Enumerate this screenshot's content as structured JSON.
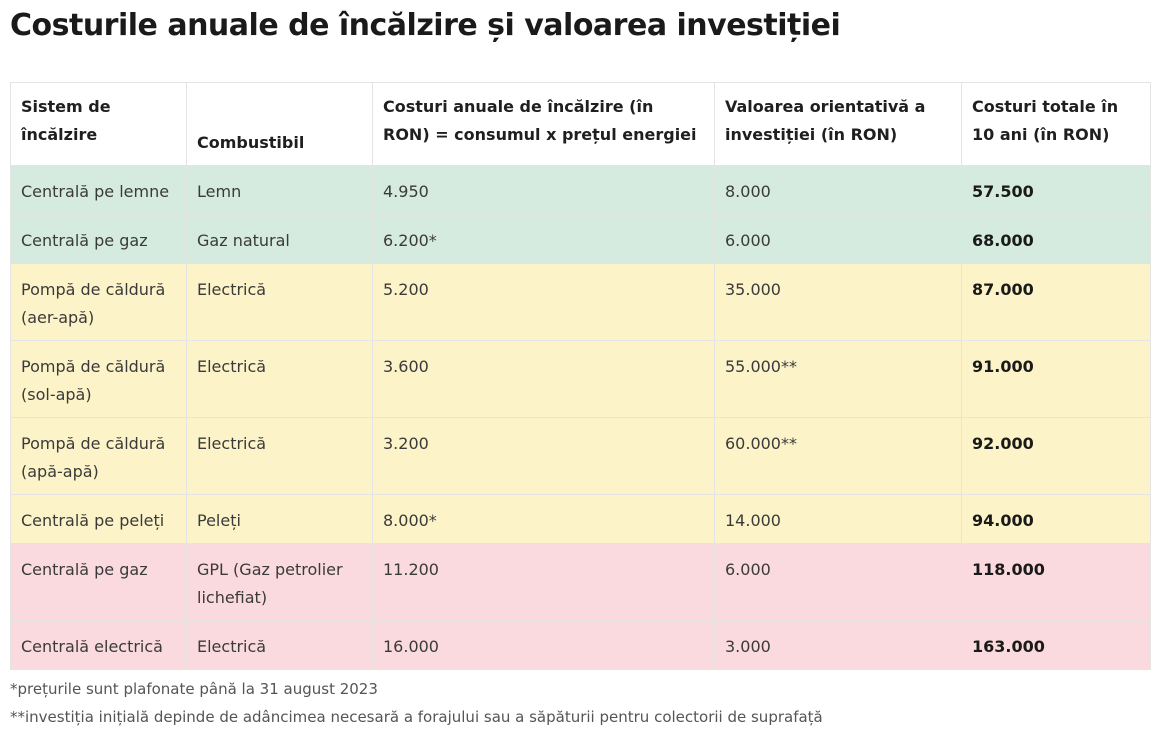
{
  "title": "Costurile anuale de încălzire și valoarea investiției",
  "columns": [
    "Sistem de încălzire",
    "Combustibil",
    "Costuri anuale de încălzire (în RON) = consumul x prețul energiei",
    "Valoarea orientativă a investiției (în RON)",
    "Costuri totale în 10 ani (în RON)"
  ],
  "rows": [
    {
      "system": "Centrală pe lemne",
      "fuel": "Lemn",
      "annual": "4.950",
      "investment": "8.000",
      "total": "57.500",
      "color": "#d6ebe0"
    },
    {
      "system": "Centrală pe gaz",
      "fuel": "Gaz natural",
      "annual": "6.200*",
      "investment": "6.000",
      "total": "68.000",
      "color": "#d6ebe0"
    },
    {
      "system": "Pompă de căldură (aer-apă)",
      "fuel": "Electrică",
      "annual": "5.200",
      "investment": "35.000",
      "total": "87.000",
      "color": "#fcf4c8"
    },
    {
      "system": "Pompă de căldură (sol-apă)",
      "fuel": "Electrică",
      "annual": "3.600",
      "investment": "55.000**",
      "total": "91.000",
      "color": "#fcf4c8"
    },
    {
      "system": "Pompă de căldură (apă-apă)",
      "fuel": "Electrică",
      "annual": "3.200",
      "investment": "60.000**",
      "total": "92.000",
      "color": "#fcf4c8"
    },
    {
      "system": "Centrală pe peleți",
      "fuel": "Peleți",
      "annual": "8.000*",
      "investment": "14.000",
      "total": "94.000",
      "color": "#fcf4c8"
    },
    {
      "system": "Centrală pe gaz",
      "fuel": "GPL (Gaz petrolier lichefiat)",
      "annual": "11.200",
      "investment": "6.000",
      "total": "118.000",
      "color": "#fadadf"
    },
    {
      "system": "Centrală electrică",
      "fuel": "Electrică",
      "annual": "16.000",
      "investment": "3.000",
      "total": "163.000",
      "color": "#fadadf"
    }
  ],
  "footnotes": [
    "*prețurile sunt plafonate până la 31 august 2023",
    "**investiția inițială depinde de adâncimea necesară a forajului sau a săpăturii pentru colectorii de suprafață"
  ]
}
